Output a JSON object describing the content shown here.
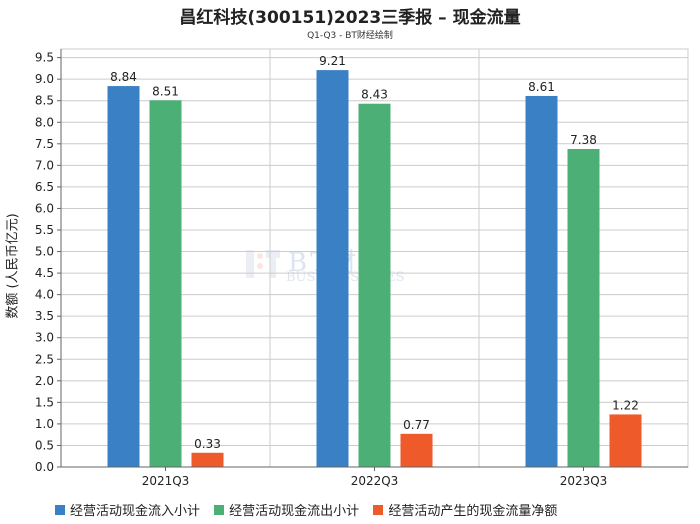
{
  "title": "昌红科技(300151)2023三季报 – 现金流量",
  "subtitle": "Q1-Q3 - BT财经绘制",
  "watermark": {
    "main": "BT财经",
    "sub": "BUSINESSTIMES"
  },
  "colors": {
    "series1": "#3a80c4",
    "series2": "#4caf76",
    "series3": "#ee5a2a",
    "grid": "#cccccc",
    "axis": "#666666"
  },
  "chart_data": {
    "type": "bar",
    "title": "昌红科技(300151)2023三季报 – 现金流量",
    "subtitle": "Q1-Q3 - BT财经绘制",
    "xlabel": "",
    "ylabel": "数额 (人民币亿元)",
    "ylim": [
      0,
      9.5
    ],
    "yticks": [
      0.0,
      0.5,
      1.0,
      1.5,
      2.0,
      2.5,
      3.0,
      3.5,
      4.0,
      4.5,
      5.0,
      5.5,
      6.0,
      6.5,
      7.0,
      7.5,
      8.0,
      8.5,
      9.0,
      9.5
    ],
    "categories": [
      "2021Q3",
      "2022Q3",
      "2023Q3"
    ],
    "grid": true,
    "legend_position": "bottom",
    "series": [
      {
        "name": "经营活动现金流入小计",
        "values": [
          8.84,
          9.21,
          8.61
        ]
      },
      {
        "name": "经营活动现金流出小计",
        "values": [
          8.51,
          8.43,
          7.38
        ]
      },
      {
        "name": "经营活动产生的现金流量净额",
        "values": [
          0.33,
          0.77,
          1.22
        ]
      }
    ]
  }
}
